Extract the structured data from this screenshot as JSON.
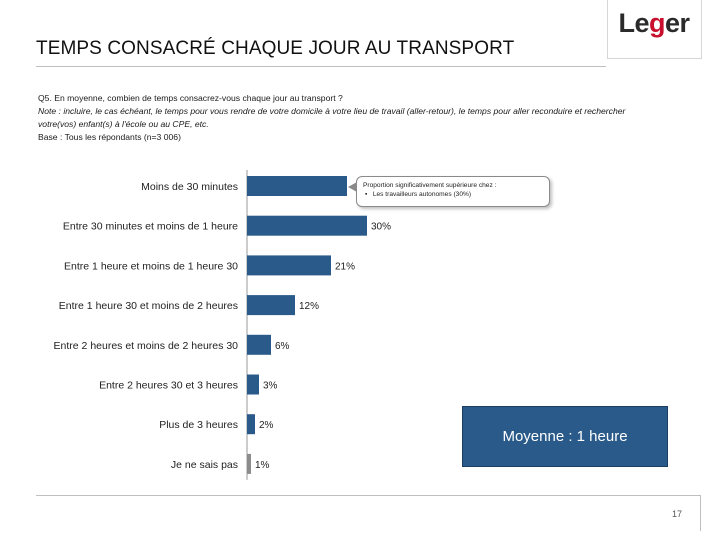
{
  "header": {
    "title": "TEMPS CONSACRÉ CHAQUE JOUR AU TRANSPORT",
    "logo_text_pre": "Le",
    "logo_text_accent": "g",
    "logo_text_post": "er"
  },
  "question": {
    "q": "Q5. En moyenne, combien de temps consacrez-vous chaque jour au transport ?",
    "note": "Note : incluire, le cas échéant, le temps pour vous rendre de votre domicile à votre lieu de travail (aller-retour), le temps pour aller reconduire et rechercher votre(vos) enfant(s) à l'école ou au CPE, etc.",
    "base": "Base : Tous les répondants (n=3 006)"
  },
  "chart_data": {
    "type": "bar",
    "orientation": "horizontal",
    "categories": [
      "Moins de 30 minutes",
      "Entre 30 minutes et moins de 1 heure",
      "Entre 1 heure et moins de 1 heure 30",
      "Entre 1 heure 30 et moins de 2 heures",
      "Entre 2 heures et moins de 2 heures 30",
      "Entre 2 heures 30 et 3 heures",
      "Plus de 3 heures",
      "Je ne sais pas"
    ],
    "values": [
      25,
      30,
      21,
      12,
      6,
      3,
      2,
      1
    ],
    "value_labels": [
      "",
      "30%",
      "21%",
      "12%",
      "6%",
      "3%",
      "2%",
      "1%"
    ],
    "unit": "%",
    "xlim": [
      0,
      40
    ],
    "bar_color": "#2a5a8a",
    "last_bar_color": "#8c8c8c",
    "grid": false
  },
  "callout": {
    "line1": "Proportion significativement supérieure chez :",
    "bullet": "▪",
    "line2": "Les travailleurs autonomes (30%)"
  },
  "mean_box": {
    "label": "Moyenne : 1 heure"
  },
  "footer": {
    "page_number": "17"
  }
}
